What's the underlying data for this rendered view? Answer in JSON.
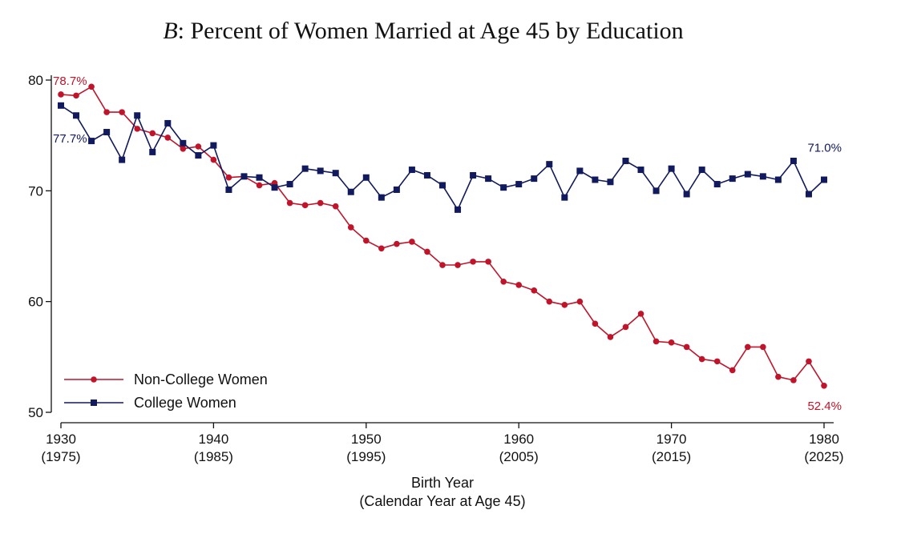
{
  "chart_data": {
    "type": "line",
    "title_prefix": "B",
    "title_rest": ": Percent of Women Married at Age 45 by Education",
    "xlabel": "Birth Year",
    "xlabel_sub": "(Calendar Year at Age 45)",
    "ylabel": "",
    "xlim": [
      1930,
      1980
    ],
    "ylim": [
      50,
      80
    ],
    "xticks": [
      {
        "value": 1930,
        "label": "1930",
        "sublabel": "(1975)"
      },
      {
        "value": 1940,
        "label": "1940",
        "sublabel": "(1985)"
      },
      {
        "value": 1950,
        "label": "1950",
        "sublabel": "(1995)"
      },
      {
        "value": 1960,
        "label": "1960",
        "sublabel": "(2005)"
      },
      {
        "value": 1970,
        "label": "1970",
        "sublabel": "(2015)"
      },
      {
        "value": 1980,
        "label": "1980",
        "sublabel": "(2025)"
      }
    ],
    "yticks": [
      {
        "value": 50,
        "label": "50"
      },
      {
        "value": 60,
        "label": "60"
      },
      {
        "value": 70,
        "label": "70"
      },
      {
        "value": 80,
        "label": "80"
      }
    ],
    "grid": false,
    "legend_position": "bottom-left",
    "x": [
      1930,
      1931,
      1932,
      1933,
      1934,
      1935,
      1936,
      1937,
      1938,
      1939,
      1940,
      1941,
      1942,
      1943,
      1944,
      1945,
      1946,
      1947,
      1948,
      1949,
      1950,
      1951,
      1952,
      1953,
      1954,
      1955,
      1956,
      1957,
      1958,
      1959,
      1960,
      1961,
      1962,
      1963,
      1964,
      1965,
      1966,
      1967,
      1968,
      1969,
      1970,
      1971,
      1972,
      1973,
      1974,
      1975,
      1976,
      1977,
      1978,
      1979,
      1980
    ],
    "series": [
      {
        "name": "Non-College Women",
        "color": "#c0142a",
        "marker": "circle",
        "values": [
          78.7,
          78.6,
          79.4,
          77.1,
          77.1,
          75.6,
          75.2,
          74.8,
          73.8,
          74.0,
          72.8,
          71.2,
          71.3,
          70.5,
          70.7,
          68.9,
          68.7,
          68.9,
          68.6,
          66.7,
          65.5,
          64.8,
          65.2,
          65.4,
          64.5,
          63.3,
          63.3,
          63.6,
          63.6,
          61.8,
          61.5,
          61.0,
          60.0,
          59.7,
          60.0,
          58.0,
          56.8,
          57.7,
          58.9,
          56.4,
          56.3,
          55.9,
          54.8,
          54.6,
          53.8,
          55.9,
          55.9,
          53.2,
          52.9,
          54.6,
          52.4
        ],
        "annotations": [
          {
            "index": 0,
            "text": "78.7%"
          },
          {
            "index": 50,
            "text": "52.4%"
          }
        ]
      },
      {
        "name": "College Women",
        "color": "#101a5c",
        "marker": "square",
        "values": [
          77.7,
          76.8,
          74.5,
          75.3,
          72.8,
          76.8,
          73.5,
          76.1,
          74.3,
          73.2,
          74.1,
          70.1,
          71.3,
          71.2,
          70.3,
          70.6,
          72.0,
          71.8,
          71.6,
          69.9,
          71.2,
          69.4,
          70.1,
          71.9,
          71.4,
          70.5,
          68.3,
          71.4,
          71.1,
          70.3,
          70.6,
          71.1,
          72.4,
          69.4,
          71.8,
          71.0,
          70.8,
          72.7,
          71.9,
          70.0,
          72.0,
          69.7,
          71.9,
          70.6,
          71.1,
          71.5,
          71.3,
          71.0,
          72.7,
          69.7,
          71.0
        ],
        "annotations": [
          {
            "index": 0,
            "text": "77.7%"
          },
          {
            "index": 50,
            "text": "71.0%"
          }
        ]
      }
    ]
  }
}
